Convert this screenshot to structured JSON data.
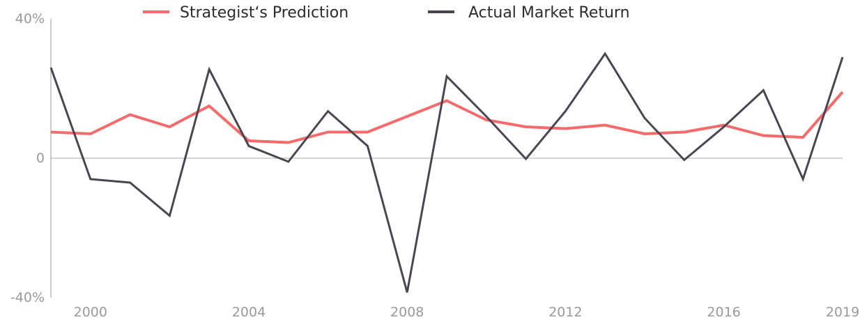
{
  "chart_data": {
    "type": "line",
    "title": "",
    "xlabel": "",
    "ylabel": "",
    "x": [
      1999,
      2000,
      2001,
      2002,
      2003,
      2004,
      2005,
      2006,
      2007,
      2008,
      2009,
      2010,
      2011,
      2012,
      2013,
      2014,
      2015,
      2016,
      2017,
      2018,
      2019
    ],
    "xlim": [
      1999,
      2019
    ],
    "ylim": [
      -40,
      40
    ],
    "x_ticks": [
      {
        "value": 2000,
        "label": "2000"
      },
      {
        "value": 2004,
        "label": "2004"
      },
      {
        "value": 2008,
        "label": "2008"
      },
      {
        "value": 2012,
        "label": "2012"
      },
      {
        "value": 2016,
        "label": "2016"
      },
      {
        "value": 2019,
        "label": "2019"
      }
    ],
    "y_ticks": [
      {
        "value": 40,
        "label": "40%"
      },
      {
        "value": 0,
        "label": "0"
      },
      {
        "value": -40,
        "label": "-40%"
      }
    ],
    "zero_line": true,
    "grid": false,
    "legend_position": "top-center",
    "series": [
      {
        "name": "Strategist‘s Prediction",
        "color": "#f56b6b",
        "values": [
          7.5,
          7.0,
          12.5,
          9.0,
          15.0,
          5.0,
          4.5,
          7.5,
          7.5,
          12.0,
          16.5,
          11.0,
          9.0,
          8.5,
          9.5,
          7.0,
          7.5,
          9.5,
          6.5,
          6.0,
          19.0
        ]
      },
      {
        "name": "Actual Market Return",
        "color": "#4a4550",
        "values": [
          26.0,
          -6.0,
          -7.0,
          -16.5,
          25.5,
          3.5,
          -1.0,
          13.5,
          3.5,
          -38.5,
          23.5,
          12.0,
          -0.2,
          13.5,
          30.0,
          11.5,
          -0.5,
          9.0,
          19.5,
          -6.0,
          29.0
        ]
      }
    ]
  }
}
